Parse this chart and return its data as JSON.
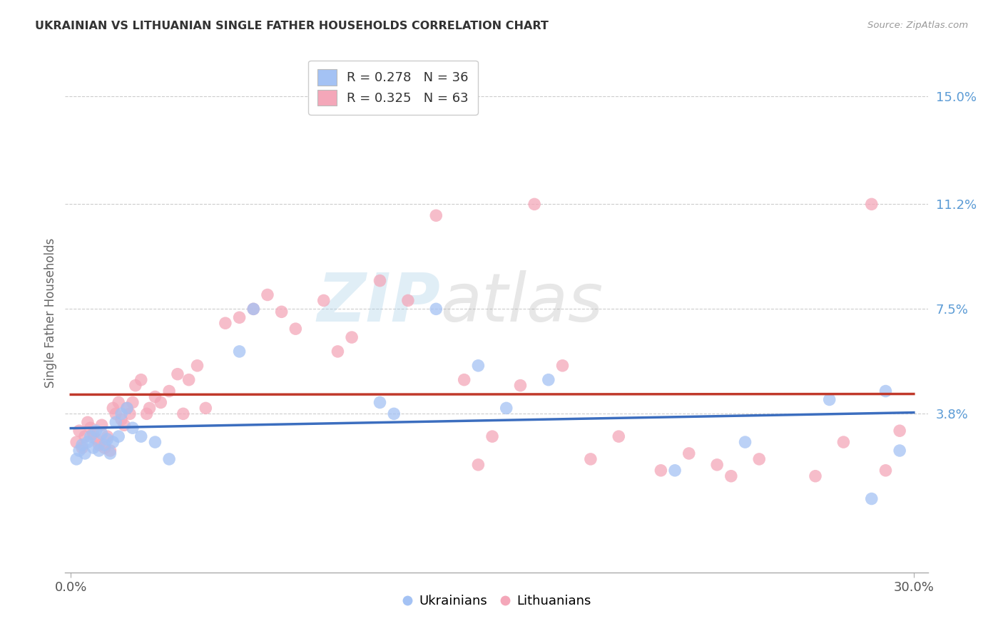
{
  "title": "UKRAINIAN VS LITHUANIAN SINGLE FATHER HOUSEHOLDS CORRELATION CHART",
  "source": "Source: ZipAtlas.com",
  "ylabel": "Single Father Households",
  "ytick_labels": [
    "15.0%",
    "11.2%",
    "7.5%",
    "3.8%"
  ],
  "ytick_values": [
    0.15,
    0.112,
    0.075,
    0.038
  ],
  "xlim": [
    -0.002,
    0.305
  ],
  "ylim": [
    -0.018,
    0.165
  ],
  "blue_color": "#a4c2f4",
  "pink_color": "#f4a7b9",
  "blue_line_color": "#3c6ebf",
  "pink_line_color": "#c0392b",
  "background_color": "#ffffff",
  "grid_color": "#cccccc",
  "legend_r1": "R = 0.278",
  "legend_n1": "N = 36",
  "legend_r2": "R = 0.325",
  "legend_n2": "N = 63",
  "legend_label1": "Ukrainians",
  "legend_label2": "Lithuanians",
  "ukrainian_x": [
    0.002,
    0.003,
    0.004,
    0.005,
    0.006,
    0.007,
    0.008,
    0.009,
    0.01,
    0.011,
    0.012,
    0.013,
    0.014,
    0.015,
    0.016,
    0.017,
    0.018,
    0.02,
    0.022,
    0.025,
    0.03,
    0.035,
    0.06,
    0.065,
    0.11,
    0.115,
    0.13,
    0.145,
    0.155,
    0.17,
    0.215,
    0.24,
    0.27,
    0.285,
    0.29,
    0.295
  ],
  "ukrainian_y": [
    0.022,
    0.025,
    0.027,
    0.024,
    0.028,
    0.03,
    0.026,
    0.032,
    0.025,
    0.031,
    0.027,
    0.029,
    0.024,
    0.028,
    0.035,
    0.03,
    0.038,
    0.04,
    0.033,
    0.03,
    0.028,
    0.022,
    0.06,
    0.075,
    0.042,
    0.038,
    0.075,
    0.055,
    0.04,
    0.05,
    0.018,
    0.028,
    0.043,
    0.008,
    0.046,
    0.025
  ],
  "lithuanian_x": [
    0.002,
    0.003,
    0.004,
    0.005,
    0.006,
    0.007,
    0.008,
    0.009,
    0.01,
    0.011,
    0.012,
    0.013,
    0.014,
    0.015,
    0.016,
    0.017,
    0.018,
    0.019,
    0.02,
    0.021,
    0.022,
    0.023,
    0.025,
    0.027,
    0.028,
    0.03,
    0.032,
    0.035,
    0.038,
    0.04,
    0.042,
    0.045,
    0.048,
    0.055,
    0.06,
    0.065,
    0.07,
    0.075,
    0.08,
    0.09,
    0.095,
    0.1,
    0.11,
    0.12,
    0.13,
    0.14,
    0.145,
    0.15,
    0.16,
    0.165,
    0.175,
    0.185,
    0.195,
    0.21,
    0.22,
    0.23,
    0.235,
    0.245,
    0.265,
    0.275,
    0.285,
    0.29,
    0.295
  ],
  "lithuanian_y": [
    0.028,
    0.032,
    0.026,
    0.03,
    0.035,
    0.033,
    0.031,
    0.029,
    0.027,
    0.034,
    0.026,
    0.03,
    0.025,
    0.04,
    0.038,
    0.042,
    0.036,
    0.034,
    0.04,
    0.038,
    0.042,
    0.048,
    0.05,
    0.038,
    0.04,
    0.044,
    0.042,
    0.046,
    0.052,
    0.038,
    0.05,
    0.055,
    0.04,
    0.07,
    0.072,
    0.075,
    0.08,
    0.074,
    0.068,
    0.078,
    0.06,
    0.065,
    0.085,
    0.078,
    0.108,
    0.05,
    0.02,
    0.03,
    0.048,
    0.112,
    0.055,
    0.022,
    0.03,
    0.018,
    0.024,
    0.02,
    0.016,
    0.022,
    0.016,
    0.028,
    0.112,
    0.018,
    0.032
  ],
  "watermark_zip": "ZIP",
  "watermark_atlas": "atlas"
}
